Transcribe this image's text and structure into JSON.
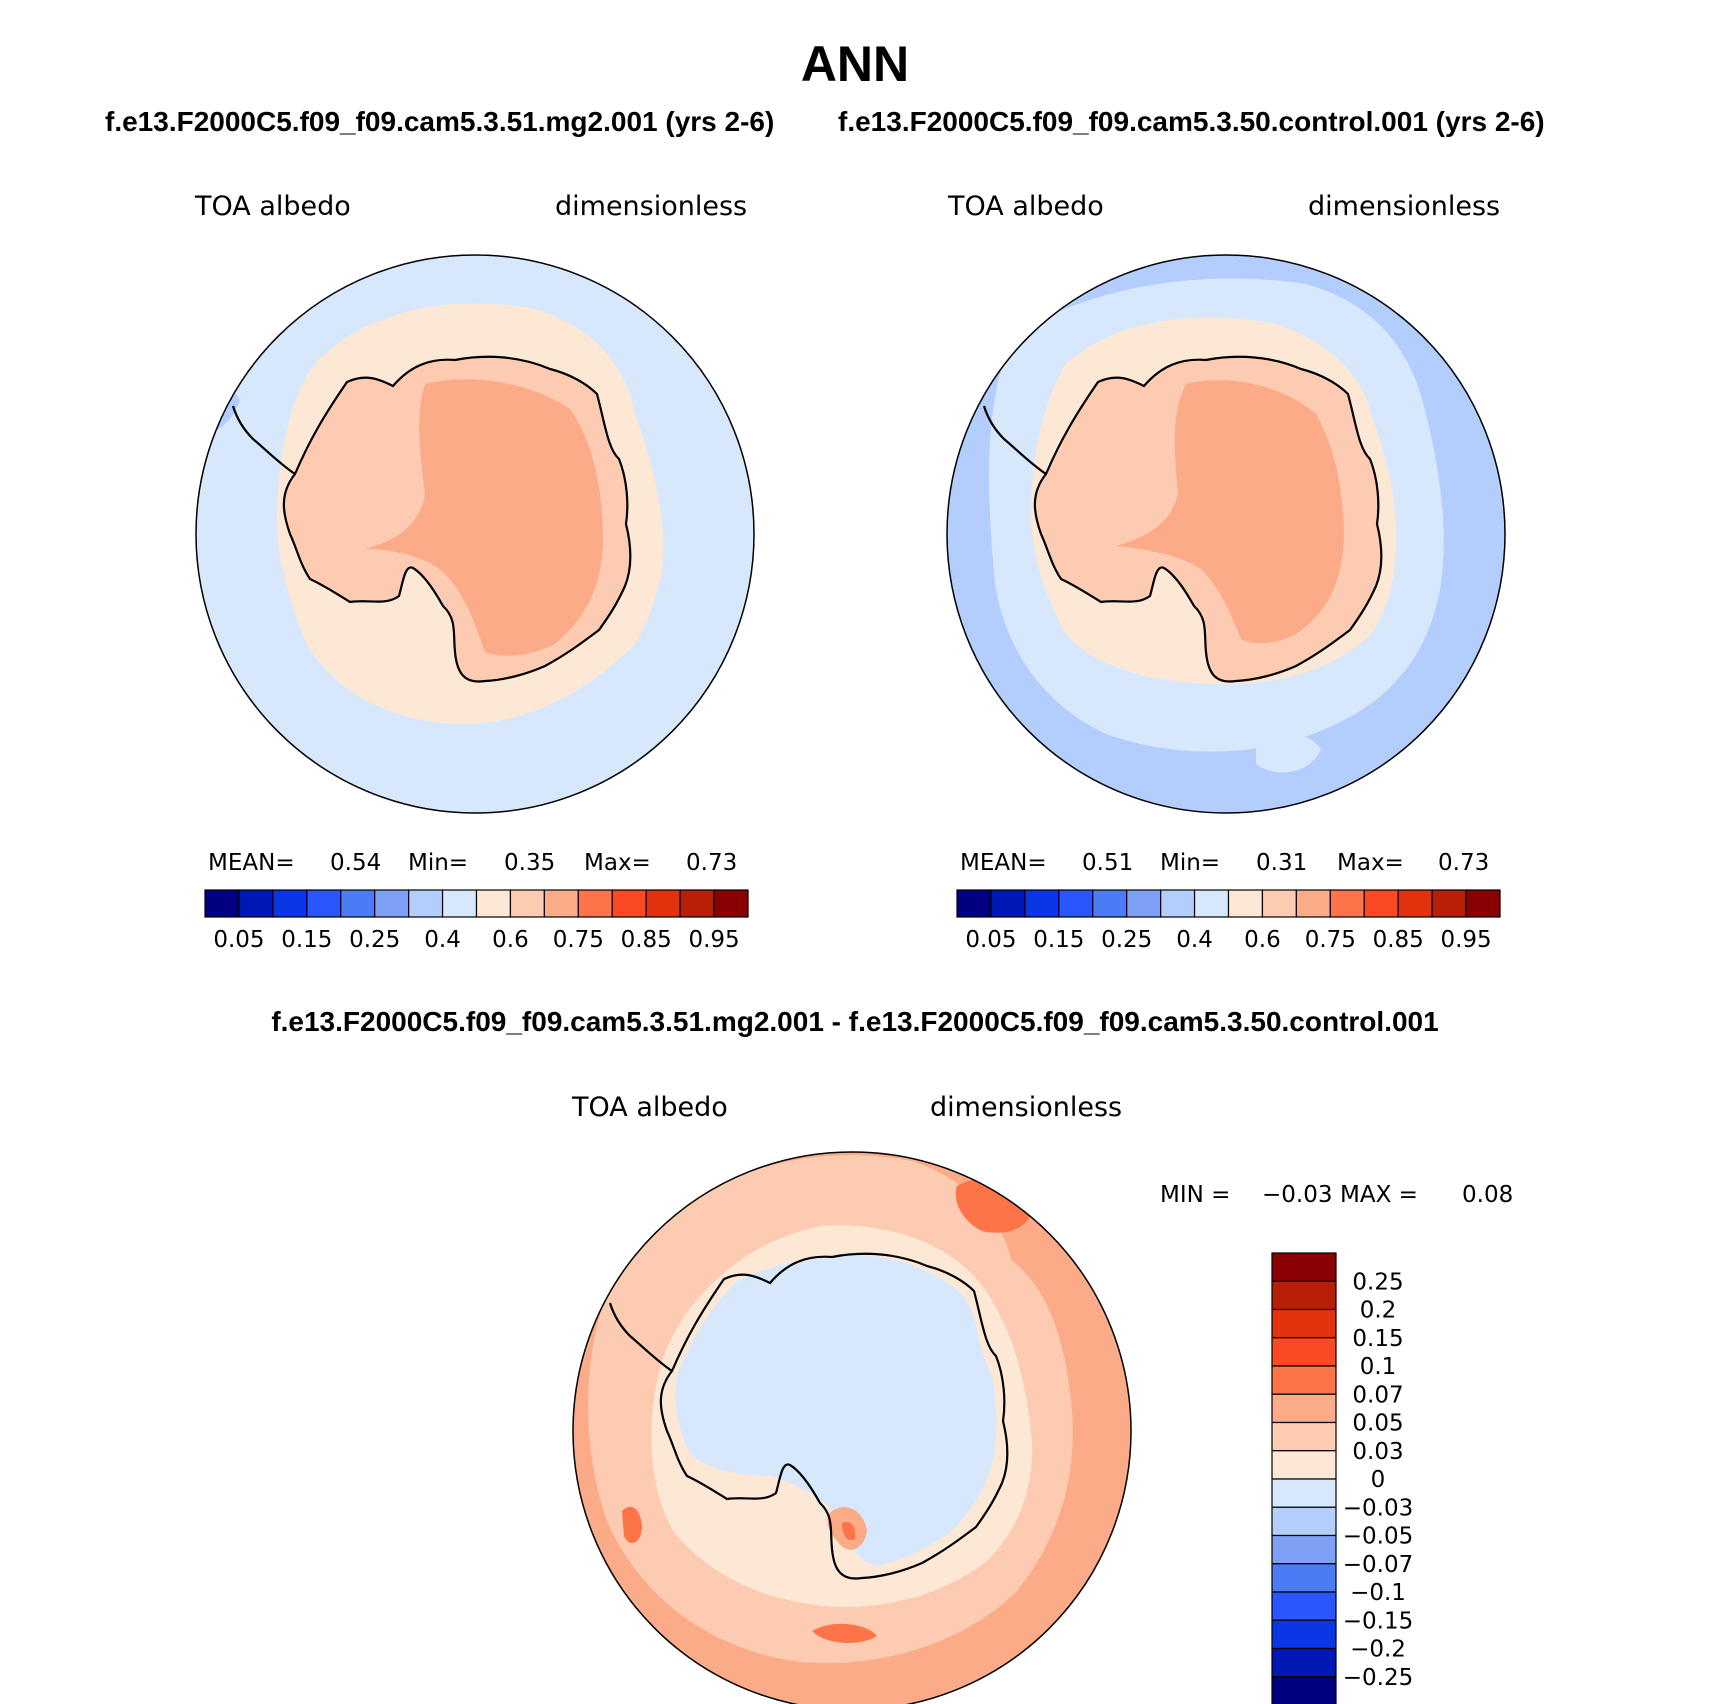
{
  "page": {
    "main_title": "ANN",
    "case1_header": "f.e13.F2000C5.f09_f09.cam5.3.51.mg2.001 (yrs 2-6)",
    "case2_header": "f.e13.F2000C5.f09_f09.cam5.3.50.control.001 (yrs 2-6)",
    "diff_header": "f.e13.F2000C5.f09_f09.cam5.3.51.mg2.001 - f.e13.F2000C5.f09_f09.cam5.3.50.control.001"
  },
  "chart_data": [
    {
      "type": "heatmap",
      "projection": "south-polar stereographic",
      "variable": "TOA albedo",
      "units": "dimensionless",
      "stats": {
        "mean_label": "MEAN=",
        "mean": "0.54",
        "min_label": "Min=",
        "min": "0.35",
        "max_label": "Max=",
        "max": "0.73"
      },
      "colorbar": {
        "orientation": "horizontal",
        "colors": [
          "#000080",
          "#0019b5",
          "#0b36e5",
          "#2857ff",
          "#4b7cf6",
          "#7ea1f5",
          "#b3cdfd",
          "#d7e8fd",
          "#fde8d6",
          "#fdcbb1",
          "#fbab88",
          "#fd7448",
          "#fb4924",
          "#e1320d",
          "#b72007",
          "#8b0000"
        ],
        "tick_labels": [
          "0.05",
          "0.15",
          "0.25",
          "0.4",
          "0.6",
          "0.75",
          "0.85",
          "0.95"
        ]
      }
    },
    {
      "type": "heatmap",
      "projection": "south-polar stereographic",
      "variable": "TOA albedo",
      "units": "dimensionless",
      "stats": {
        "mean_label": "MEAN=",
        "mean": "0.51",
        "min_label": "Min=",
        "min": "0.31",
        "max_label": "Max=",
        "max": "0.73"
      },
      "colorbar": {
        "orientation": "horizontal",
        "colors": [
          "#000080",
          "#0019b5",
          "#0b36e5",
          "#2857ff",
          "#4b7cf6",
          "#7ea1f5",
          "#b3cdfd",
          "#d7e8fd",
          "#fde8d6",
          "#fdcbb1",
          "#fbab88",
          "#fd7448",
          "#fb4924",
          "#e1320d",
          "#b72007",
          "#8b0000"
        ],
        "tick_labels": [
          "0.05",
          "0.15",
          "0.25",
          "0.4",
          "0.6",
          "0.75",
          "0.85",
          "0.95"
        ]
      }
    },
    {
      "type": "heatmap",
      "projection": "south-polar stereographic",
      "variable": "TOA albedo",
      "units": "dimensionless",
      "stats": {
        "min_label": "MIN =",
        "min": "−0.03",
        "max_label": "MAX =",
        "max": "0.08"
      },
      "colorbar": {
        "orientation": "vertical",
        "colors_top_to_bottom": [
          "#8b0000",
          "#b72007",
          "#e1320d",
          "#fb4924",
          "#fd7448",
          "#fbab88",
          "#fdcbb1",
          "#fde8d6",
          "#d7e8fd",
          "#b3cdfd",
          "#7ea1f5",
          "#4b7cf6",
          "#2857ff",
          "#0b36e5",
          "#0019b5",
          "#000080"
        ],
        "tick_labels_top_to_bottom": [
          "0.25",
          "0.2",
          "0.15",
          "0.1",
          "0.07",
          "0.05",
          "0.03",
          "0",
          "−0.03",
          "−0.05",
          "−0.07",
          "−0.1",
          "−0.15",
          "−0.2",
          "−0.25"
        ]
      }
    }
  ]
}
